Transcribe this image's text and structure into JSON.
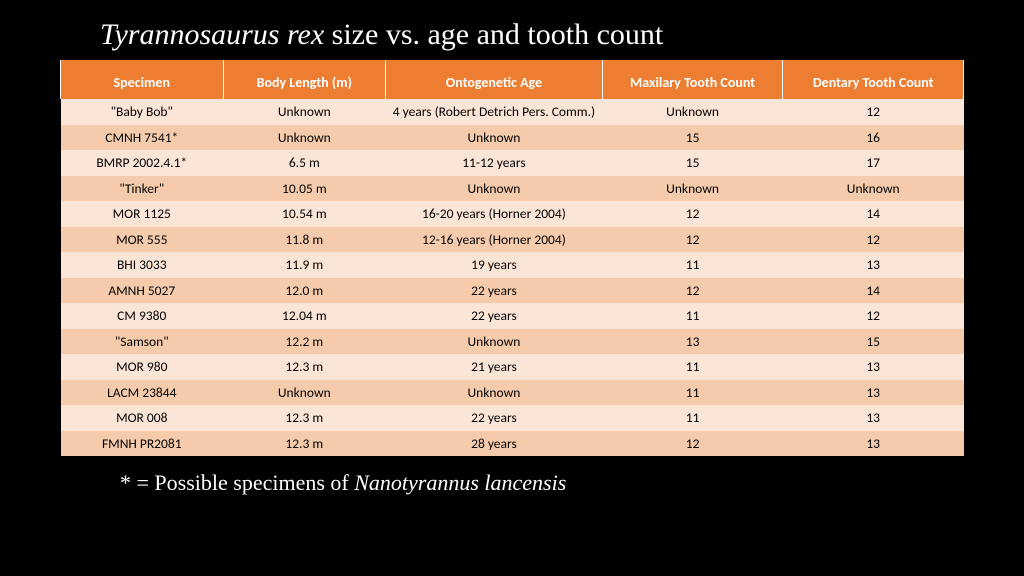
{
  "title_italic": "Tyrannosaurus rex",
  "title_rest": " size vs. age and tooth count",
  "table": {
    "header_bg": "#ed7d31",
    "header_fg": "#ffffff",
    "row_light_bg": "#fbe5d6",
    "row_dark_bg": "#f5cbab",
    "text_color": "#000000",
    "font_size_header": 14,
    "font_size_cell": 13.5,
    "columns": [
      "Specimen",
      "Body Length (m)",
      "Ontogenetic Age",
      "Maxilary Tooth Count",
      "Dentary Tooth Count"
    ],
    "col_widths": [
      "18%",
      "18%",
      "24%",
      "20%",
      "20%"
    ],
    "rows": [
      [
        "\"Baby Bob\"",
        "Unknown",
        "4 years (Robert Detrich Pers. Comm.)",
        "Unknown",
        "12"
      ],
      [
        "CMNH 7541*",
        "Unknown",
        "Unknown",
        "15",
        "16"
      ],
      [
        "BMRP 2002.4.1*",
        "6.5 m",
        "11-12 years",
        "15",
        "17"
      ],
      [
        "\"Tinker\"",
        "10.05 m",
        "Unknown",
        "Unknown",
        "Unknown"
      ],
      [
        "MOR 1125",
        "10.54 m",
        "16-20 years (Horner 2004)",
        "12",
        "14"
      ],
      [
        "MOR 555",
        "11.8 m",
        "12-16 years (Horner 2004)",
        "12",
        "12"
      ],
      [
        "BHI 3033",
        "11.9 m",
        "19 years",
        "11",
        "13"
      ],
      [
        "AMNH 5027",
        "12.0 m",
        "22 years",
        "12",
        "14"
      ],
      [
        "CM 9380",
        "12.04 m",
        "22 years",
        "11",
        "12"
      ],
      [
        "\"Samson\"",
        "12.2 m",
        "Unknown",
        "13",
        "15"
      ],
      [
        "MOR 980",
        "12.3 m",
        "21 years",
        "11",
        "13"
      ],
      [
        "LACM 23844",
        "Unknown",
        "Unknown",
        "11",
        "13"
      ],
      [
        "MOR 008",
        "12.3 m",
        "22 years",
        "11",
        "13"
      ],
      [
        "FMNH PR2081",
        "12.3 m",
        "28 years",
        "12",
        "13"
      ]
    ]
  },
  "footnote_prefix": "* = Possible specimens of ",
  "footnote_italic": "Nanotyrannus lancensis"
}
